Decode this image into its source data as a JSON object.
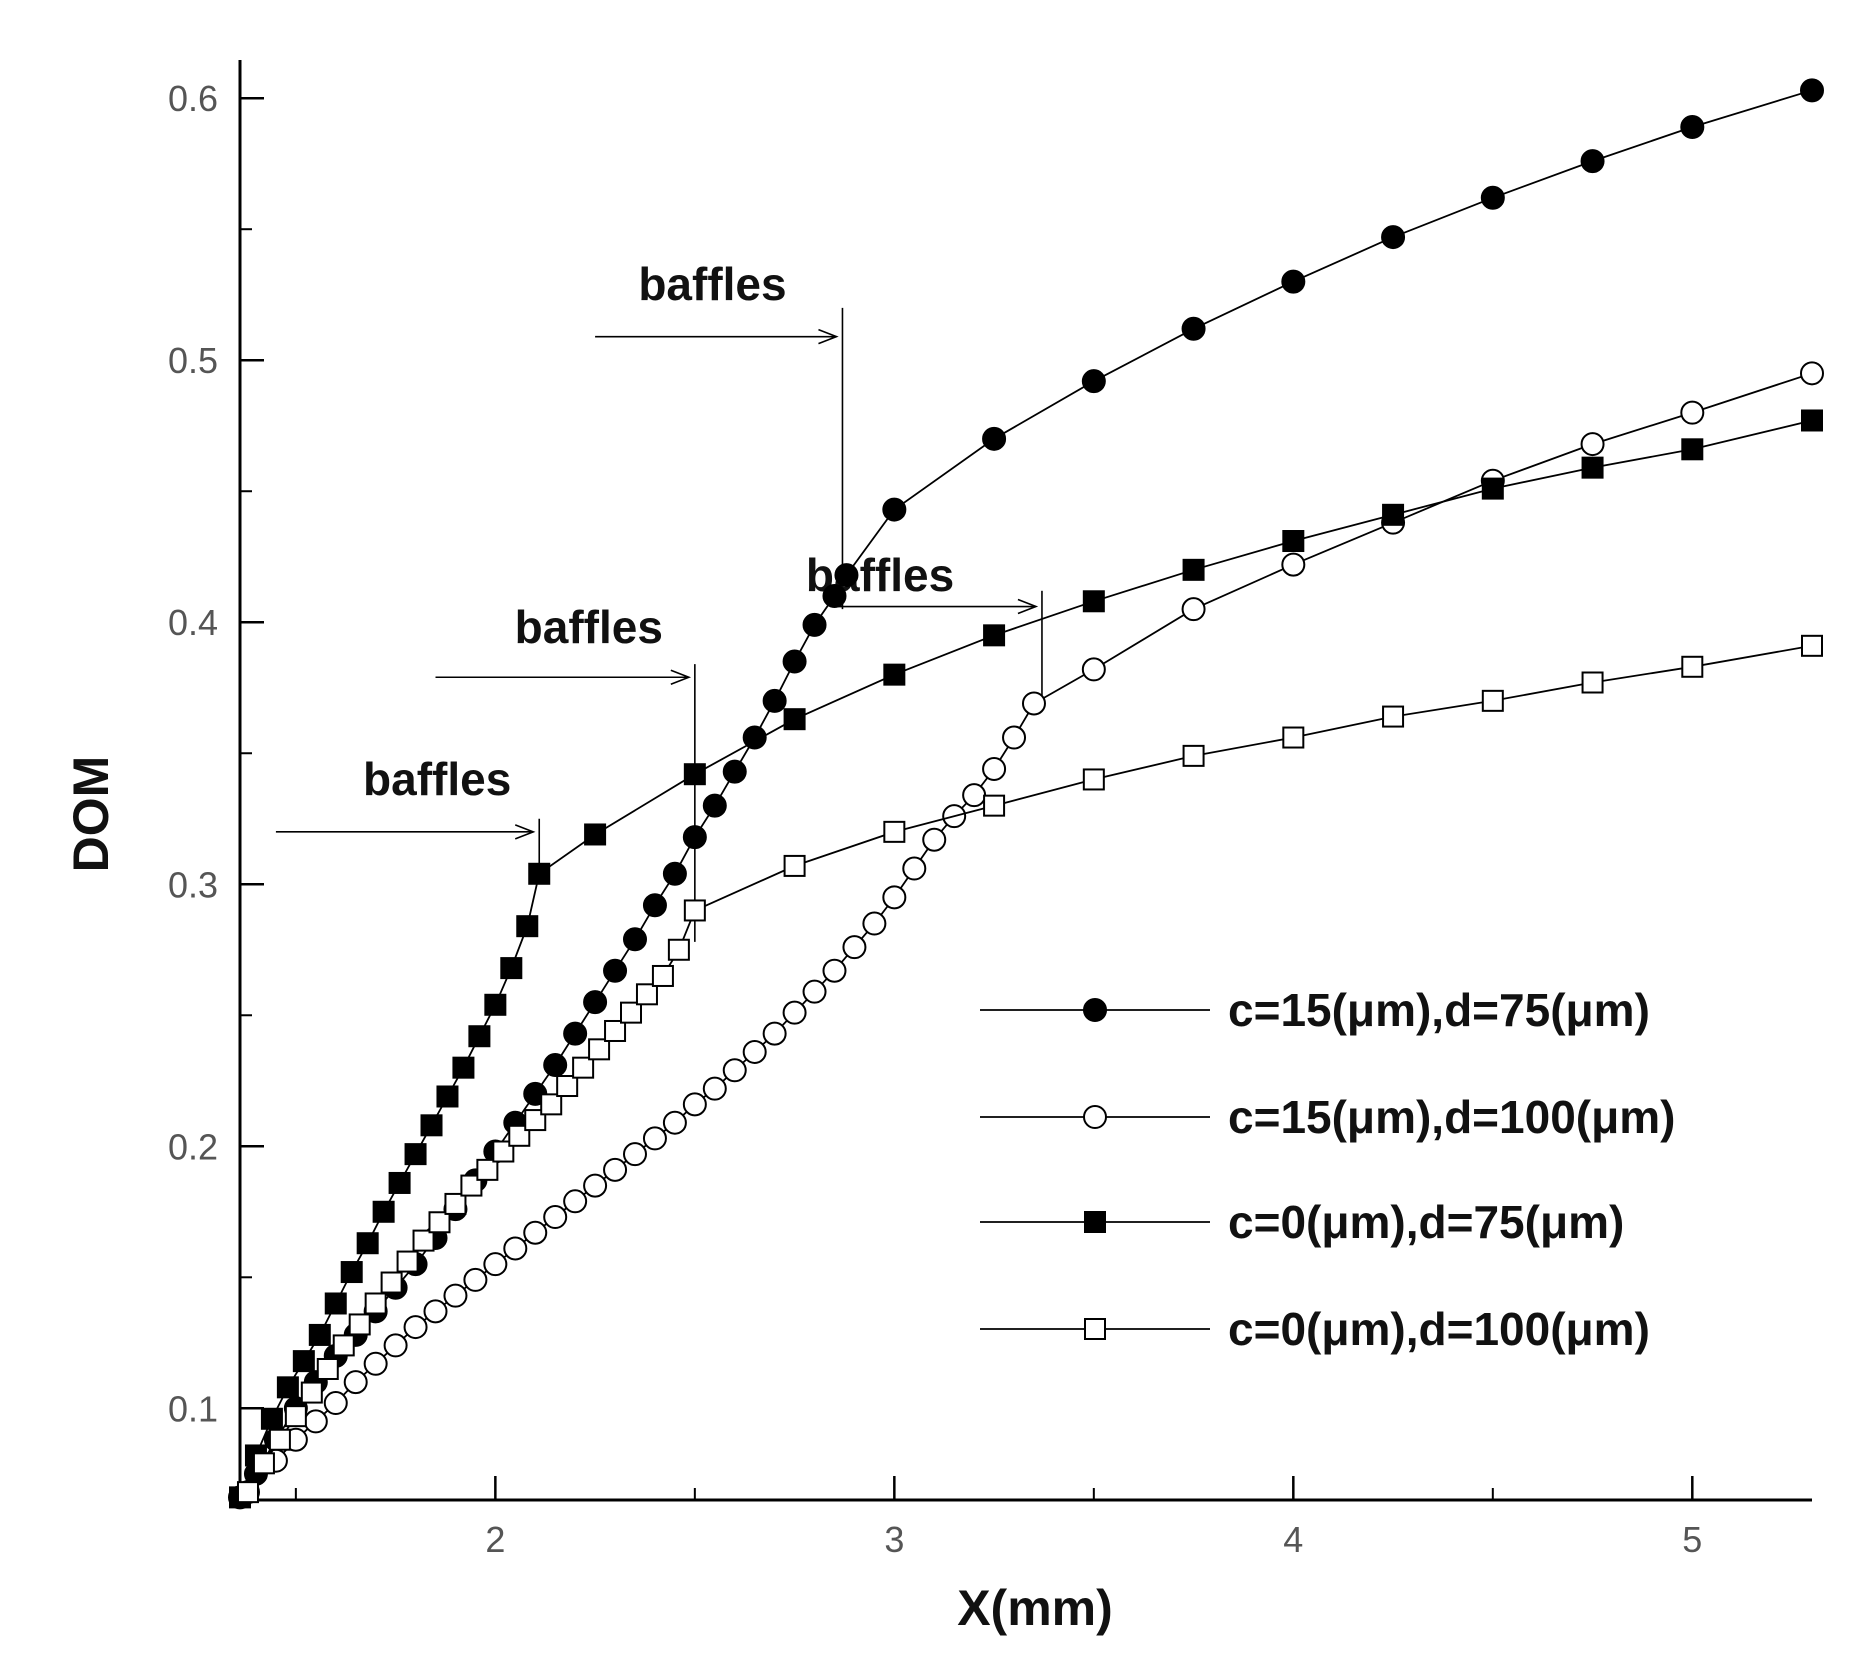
{
  "chart_data": {
    "type": "line",
    "title": "",
    "xlabel": "X(mm)",
    "ylabel": "DOM",
    "xlim": [
      1.36,
      5.3
    ],
    "ylim": [
      0.065,
      0.61
    ],
    "x_ticks": [
      2,
      3,
      4,
      5
    ],
    "x_tick_labels": [
      "2",
      "3",
      "4",
      "5"
    ],
    "y_ticks": [
      0.1,
      0.2,
      0.3,
      0.4,
      0.5,
      0.6
    ],
    "y_tick_labels": [
      "0.1",
      "0.2",
      "0.3",
      "0.4",
      "0.5",
      "0.6"
    ],
    "grid": false,
    "legend_position": "lower-right",
    "series": [
      {
        "name": "c=15(μm),d=75(μm)",
        "marker": "filled-circle",
        "x": [
          1.36,
          1.4,
          1.45,
          1.5,
          1.55,
          1.6,
          1.65,
          1.7,
          1.75,
          1.8,
          1.85,
          1.9,
          1.95,
          2.0,
          2.05,
          2.1,
          2.15,
          2.2,
          2.25,
          2.3,
          2.35,
          2.4,
          2.45,
          2.5,
          2.55,
          2.6,
          2.65,
          2.7,
          2.75,
          2.8,
          2.85,
          2.88,
          3.0,
          3.25,
          3.5,
          3.75,
          4.0,
          4.25,
          4.5,
          4.75,
          5.0,
          5.3
        ],
        "y": [
          0.066,
          0.075,
          0.088,
          0.1,
          0.11,
          0.12,
          0.128,
          0.137,
          0.146,
          0.155,
          0.165,
          0.176,
          0.187,
          0.198,
          0.209,
          0.22,
          0.231,
          0.243,
          0.255,
          0.267,
          0.279,
          0.292,
          0.304,
          0.318,
          0.33,
          0.343,
          0.356,
          0.37,
          0.385,
          0.399,
          0.41,
          0.418,
          0.443,
          0.47,
          0.492,
          0.512,
          0.53,
          0.547,
          0.562,
          0.576,
          0.589,
          0.603
        ]
      },
      {
        "name": "c=15(μm),d=100(μm)",
        "marker": "open-circle",
        "x": [
          1.38,
          1.45,
          1.5,
          1.55,
          1.6,
          1.65,
          1.7,
          1.75,
          1.8,
          1.85,
          1.9,
          1.95,
          2.0,
          2.05,
          2.1,
          2.15,
          2.2,
          2.25,
          2.3,
          2.35,
          2.4,
          2.45,
          2.5,
          2.55,
          2.6,
          2.65,
          2.7,
          2.75,
          2.8,
          2.85,
          2.9,
          2.95,
          3.0,
          3.05,
          3.1,
          3.15,
          3.2,
          3.25,
          3.3,
          3.35,
          3.5,
          3.75,
          4.0,
          4.25,
          4.5,
          4.75,
          5.0,
          5.3
        ],
        "y": [
          0.068,
          0.08,
          0.088,
          0.095,
          0.102,
          0.11,
          0.117,
          0.124,
          0.131,
          0.137,
          0.143,
          0.149,
          0.155,
          0.161,
          0.167,
          0.173,
          0.179,
          0.185,
          0.191,
          0.197,
          0.203,
          0.209,
          0.216,
          0.222,
          0.229,
          0.236,
          0.243,
          0.251,
          0.259,
          0.267,
          0.276,
          0.285,
          0.295,
          0.306,
          0.317,
          0.326,
          0.334,
          0.344,
          0.356,
          0.369,
          0.382,
          0.405,
          0.422,
          0.438,
          0.454,
          0.468,
          0.48,
          0.495
        ]
      },
      {
        "name": "c=0(μm),d=75(μm)",
        "marker": "filled-square",
        "x": [
          1.36,
          1.4,
          1.44,
          1.48,
          1.52,
          1.56,
          1.6,
          1.64,
          1.68,
          1.72,
          1.76,
          1.8,
          1.84,
          1.88,
          1.92,
          1.96,
          2.0,
          2.04,
          2.08,
          2.11,
          2.25,
          2.5,
          2.75,
          3.0,
          3.25,
          3.5,
          3.75,
          4.0,
          4.25,
          4.5,
          4.75,
          5.0,
          5.3
        ],
        "y": [
          0.066,
          0.082,
          0.096,
          0.108,
          0.118,
          0.128,
          0.14,
          0.152,
          0.163,
          0.175,
          0.186,
          0.197,
          0.208,
          0.219,
          0.23,
          0.242,
          0.254,
          0.268,
          0.284,
          0.304,
          0.319,
          0.342,
          0.363,
          0.38,
          0.395,
          0.408,
          0.42,
          0.431,
          0.441,
          0.451,
          0.459,
          0.466,
          0.477
        ]
      },
      {
        "name": "c=0(μm),d=100(μm)",
        "marker": "open-square",
        "x": [
          1.38,
          1.42,
          1.46,
          1.5,
          1.54,
          1.58,
          1.62,
          1.66,
          1.7,
          1.74,
          1.78,
          1.82,
          1.86,
          1.9,
          1.94,
          1.98,
          2.02,
          2.06,
          2.1,
          2.14,
          2.18,
          2.22,
          2.26,
          2.3,
          2.34,
          2.38,
          2.42,
          2.46,
          2.5,
          2.75,
          3.0,
          3.25,
          3.5,
          3.75,
          4.0,
          4.25,
          4.5,
          4.75,
          5.0,
          5.3
        ],
        "y": [
          0.068,
          0.079,
          0.088,
          0.097,
          0.106,
          0.115,
          0.124,
          0.132,
          0.14,
          0.148,
          0.156,
          0.164,
          0.171,
          0.178,
          0.185,
          0.191,
          0.198,
          0.204,
          0.21,
          0.216,
          0.223,
          0.23,
          0.237,
          0.244,
          0.251,
          0.258,
          0.265,
          0.275,
          0.29,
          0.307,
          0.32,
          0.33,
          0.34,
          0.349,
          0.356,
          0.364,
          0.37,
          0.377,
          0.383,
          0.391
        ]
      }
    ],
    "annotations": [
      {
        "text": "baffles",
        "baffle_x": 2.11,
        "label_x": 2.04,
        "label_y": 0.334,
        "arrow_start_x": 1.45,
        "arrow_y": 0.32,
        "line_y_top": 0.325,
        "line_y_bottom": 0.3
      },
      {
        "text": "baffles",
        "baffle_x": 2.5,
        "label_x": 2.42,
        "label_y": 0.392,
        "arrow_start_x": 1.85,
        "arrow_y": 0.379,
        "line_y_top": 0.384,
        "line_y_bottom": 0.278
      },
      {
        "text": "baffles",
        "baffle_x": 2.87,
        "label_x": 2.73,
        "label_y": 0.523,
        "arrow_start_x": 2.25,
        "arrow_y": 0.509,
        "line_y_top": 0.52,
        "line_y_bottom": 0.405
      },
      {
        "text": "baffles",
        "baffle_x": 3.37,
        "label_x": 3.15,
        "label_y": 0.412,
        "arrow_start_x": 2.84,
        "arrow_y": 0.406,
        "line_y_top": 0.412,
        "line_y_bottom": 0.368
      }
    ]
  }
}
